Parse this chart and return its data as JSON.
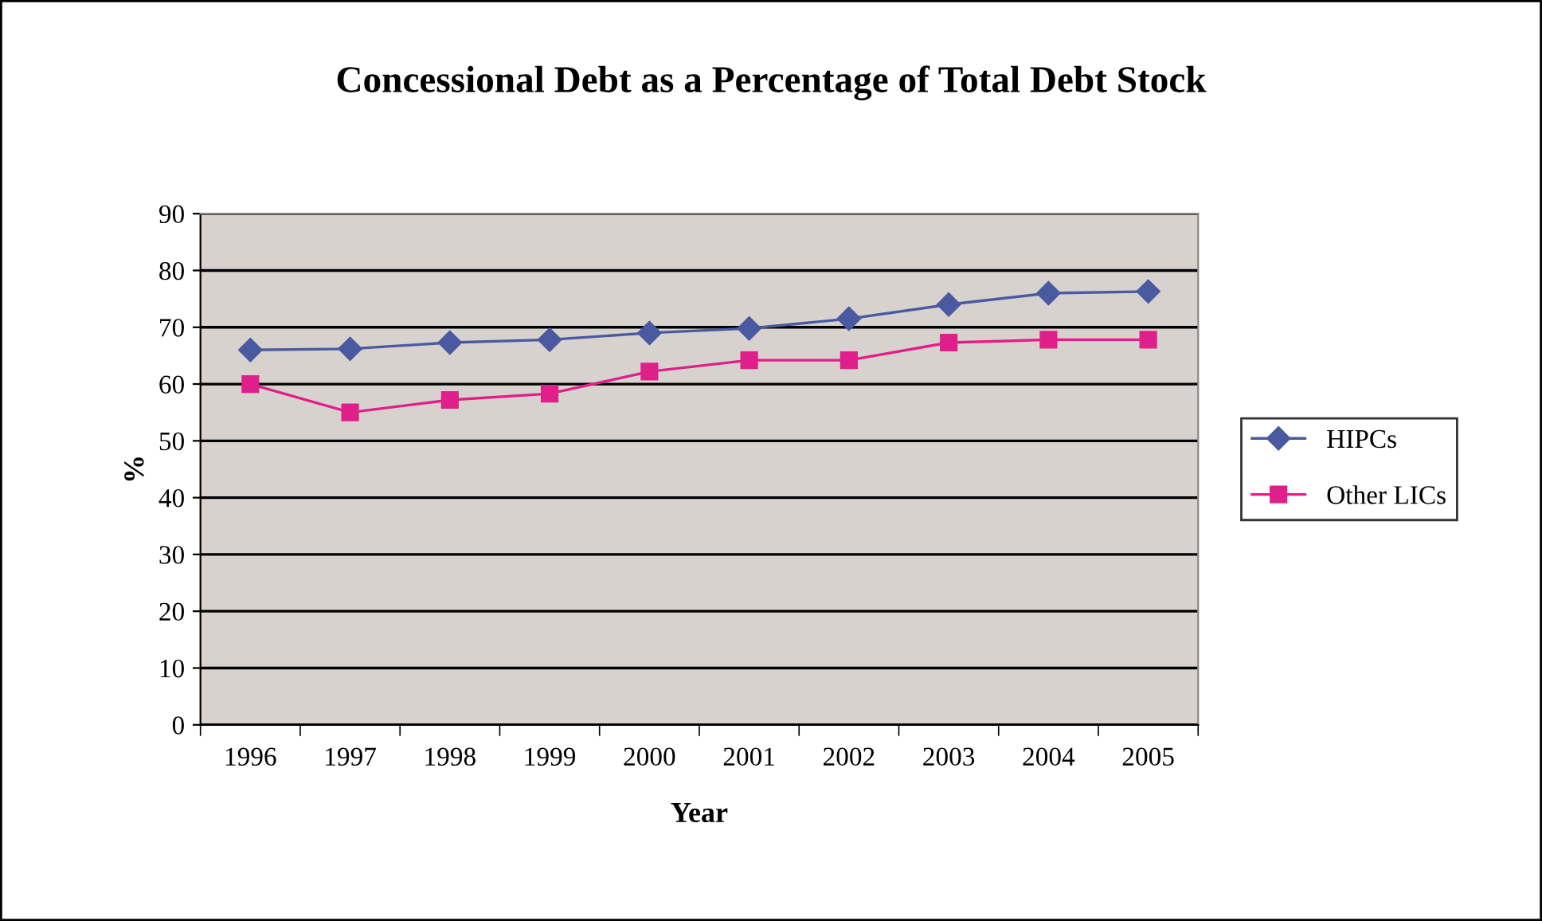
{
  "chart_data": {
    "type": "line",
    "title": "Concessional Debt as a Percentage of Total Debt Stock",
    "xlabel": "Year",
    "ylabel": "%",
    "categories": [
      "1996",
      "1997",
      "1998",
      "1999",
      "2000",
      "2001",
      "2002",
      "2003",
      "2004",
      "2005"
    ],
    "series": [
      {
        "name": "HIPCs",
        "color": "#4a5aa0",
        "marker": "diamond",
        "values": [
          66,
          66.2,
          67.3,
          67.8,
          69,
          69.8,
          71.5,
          74,
          76,
          76.3
        ]
      },
      {
        "name": "Other LICs",
        "color": "#e0208a",
        "marker": "square",
        "values": [
          60,
          55,
          57.2,
          58.3,
          62.2,
          64.2,
          64.2,
          67.3,
          67.8,
          67.8
        ]
      }
    ],
    "ylim": [
      0,
      90
    ],
    "yticks": [
      0,
      10,
      20,
      30,
      40,
      50,
      60,
      70,
      80,
      90
    ],
    "grid": "y",
    "legend": "right",
    "line_style": "solid"
  }
}
